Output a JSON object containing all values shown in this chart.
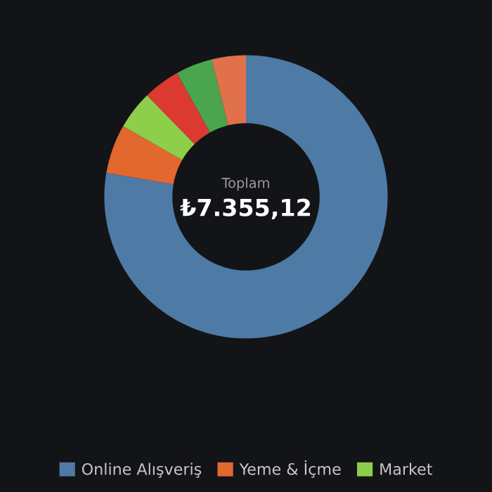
{
  "chart_data": {
    "type": "donut",
    "categories": [
      "Online Alışveriş",
      "Yeme & İçme",
      "Market",
      null,
      null,
      null
    ],
    "values": [
      77.7,
      5.6,
      4.4,
      4.2,
      4.2,
      3.9
    ],
    "colors": [
      "#4e7aa6",
      "#e2682f",
      "#8dcf4a",
      "#dc3a30",
      "#4aa64e",
      "#e0714a"
    ],
    "annotations": [
      "Toplam",
      "₺7.355,12"
    ],
    "legend": "bottom"
  }
}
